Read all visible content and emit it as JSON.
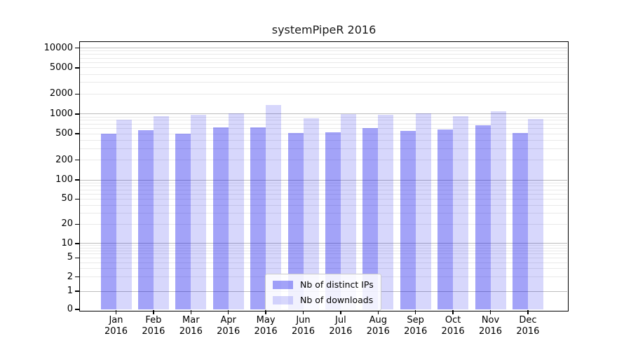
{
  "chart_data": {
    "type": "bar",
    "title": "systemPipeR 2016",
    "categories": [
      "Jan 2016",
      "Feb 2016",
      "Mar 2016",
      "Apr 2016",
      "May 2016",
      "Jun 2016",
      "Jul 2016",
      "Aug 2016",
      "Sep 2016",
      "Oct 2016",
      "Nov 2016",
      "Dec 2016"
    ],
    "series": [
      {
        "name": "Nb of distinct IPs",
        "key": "ips",
        "color_hex": "#a3a3f4",
        "color_rgba": "rgba(0,0,235,0.36)",
        "values": [
          500,
          565,
          500,
          620,
          625,
          520,
          530,
          610,
          555,
          580,
          675,
          515
        ]
      },
      {
        "name": "Nb of downloads",
        "key": "downloads",
        "color_hex": "#d8d8fa",
        "color_rgba": "rgba(0,0,235,0.155)",
        "values": [
          810,
          930,
          960,
          1030,
          1360,
          850,
          1000,
          975,
          1015,
          920,
          1105,
          835
        ]
      }
    ],
    "yscale": "symlog",
    "yticks": [
      0,
      1,
      2,
      5,
      10,
      20,
      50,
      100,
      200,
      500,
      1000,
      2000,
      5000,
      10000
    ],
    "ylim": [
      0,
      10000
    ],
    "grid": {
      "on": true,
      "major_color": "#bdbdbd",
      "minor_color": "#e9e9e9"
    },
    "legend_position": "lower center",
    "text_color": "#000000"
  }
}
